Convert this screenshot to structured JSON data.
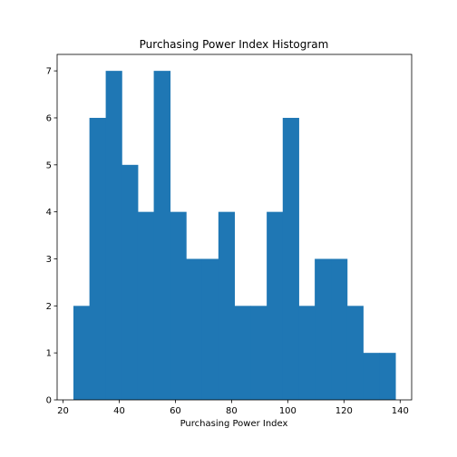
{
  "chart_data": {
    "type": "bar",
    "title": "Purchasing Power Index Histogram",
    "xlabel": "Purchasing Power Index",
    "ylabel": "",
    "bins": [
      {
        "start": 23.7,
        "end": 29.4,
        "count": 2
      },
      {
        "start": 29.4,
        "end": 35.2,
        "count": 6
      },
      {
        "start": 35.2,
        "end": 40.9,
        "count": 7
      },
      {
        "start": 40.9,
        "end": 46.6,
        "count": 5
      },
      {
        "start": 46.6,
        "end": 52.3,
        "count": 4
      },
      {
        "start": 52.3,
        "end": 58.1,
        "count": 7
      },
      {
        "start": 58.1,
        "end": 63.8,
        "count": 4
      },
      {
        "start": 63.8,
        "end": 69.5,
        "count": 3
      },
      {
        "start": 69.5,
        "end": 75.3,
        "count": 3
      },
      {
        "start": 75.3,
        "end": 81.0,
        "count": 4
      },
      {
        "start": 81.0,
        "end": 86.7,
        "count": 2
      },
      {
        "start": 86.7,
        "end": 92.5,
        "count": 2
      },
      {
        "start": 92.5,
        "end": 98.2,
        "count": 4
      },
      {
        "start": 98.2,
        "end": 103.9,
        "count": 6
      },
      {
        "start": 103.9,
        "end": 109.6,
        "count": 2
      },
      {
        "start": 109.6,
        "end": 115.4,
        "count": 3
      },
      {
        "start": 115.4,
        "end": 121.1,
        "count": 3
      },
      {
        "start": 121.1,
        "end": 126.8,
        "count": 2
      },
      {
        "start": 126.8,
        "end": 132.6,
        "count": 1
      },
      {
        "start": 132.6,
        "end": 138.3,
        "count": 1
      }
    ],
    "xlim": [
      17.9,
      144.1
    ],
    "ylim": [
      0,
      7.35
    ],
    "xticks": [
      20,
      40,
      60,
      80,
      100,
      120,
      140
    ],
    "yticks": [
      0,
      1,
      2,
      3,
      4,
      5,
      6,
      7
    ],
    "bar_color": "#1f77b4",
    "grid": false,
    "legend": "none"
  }
}
